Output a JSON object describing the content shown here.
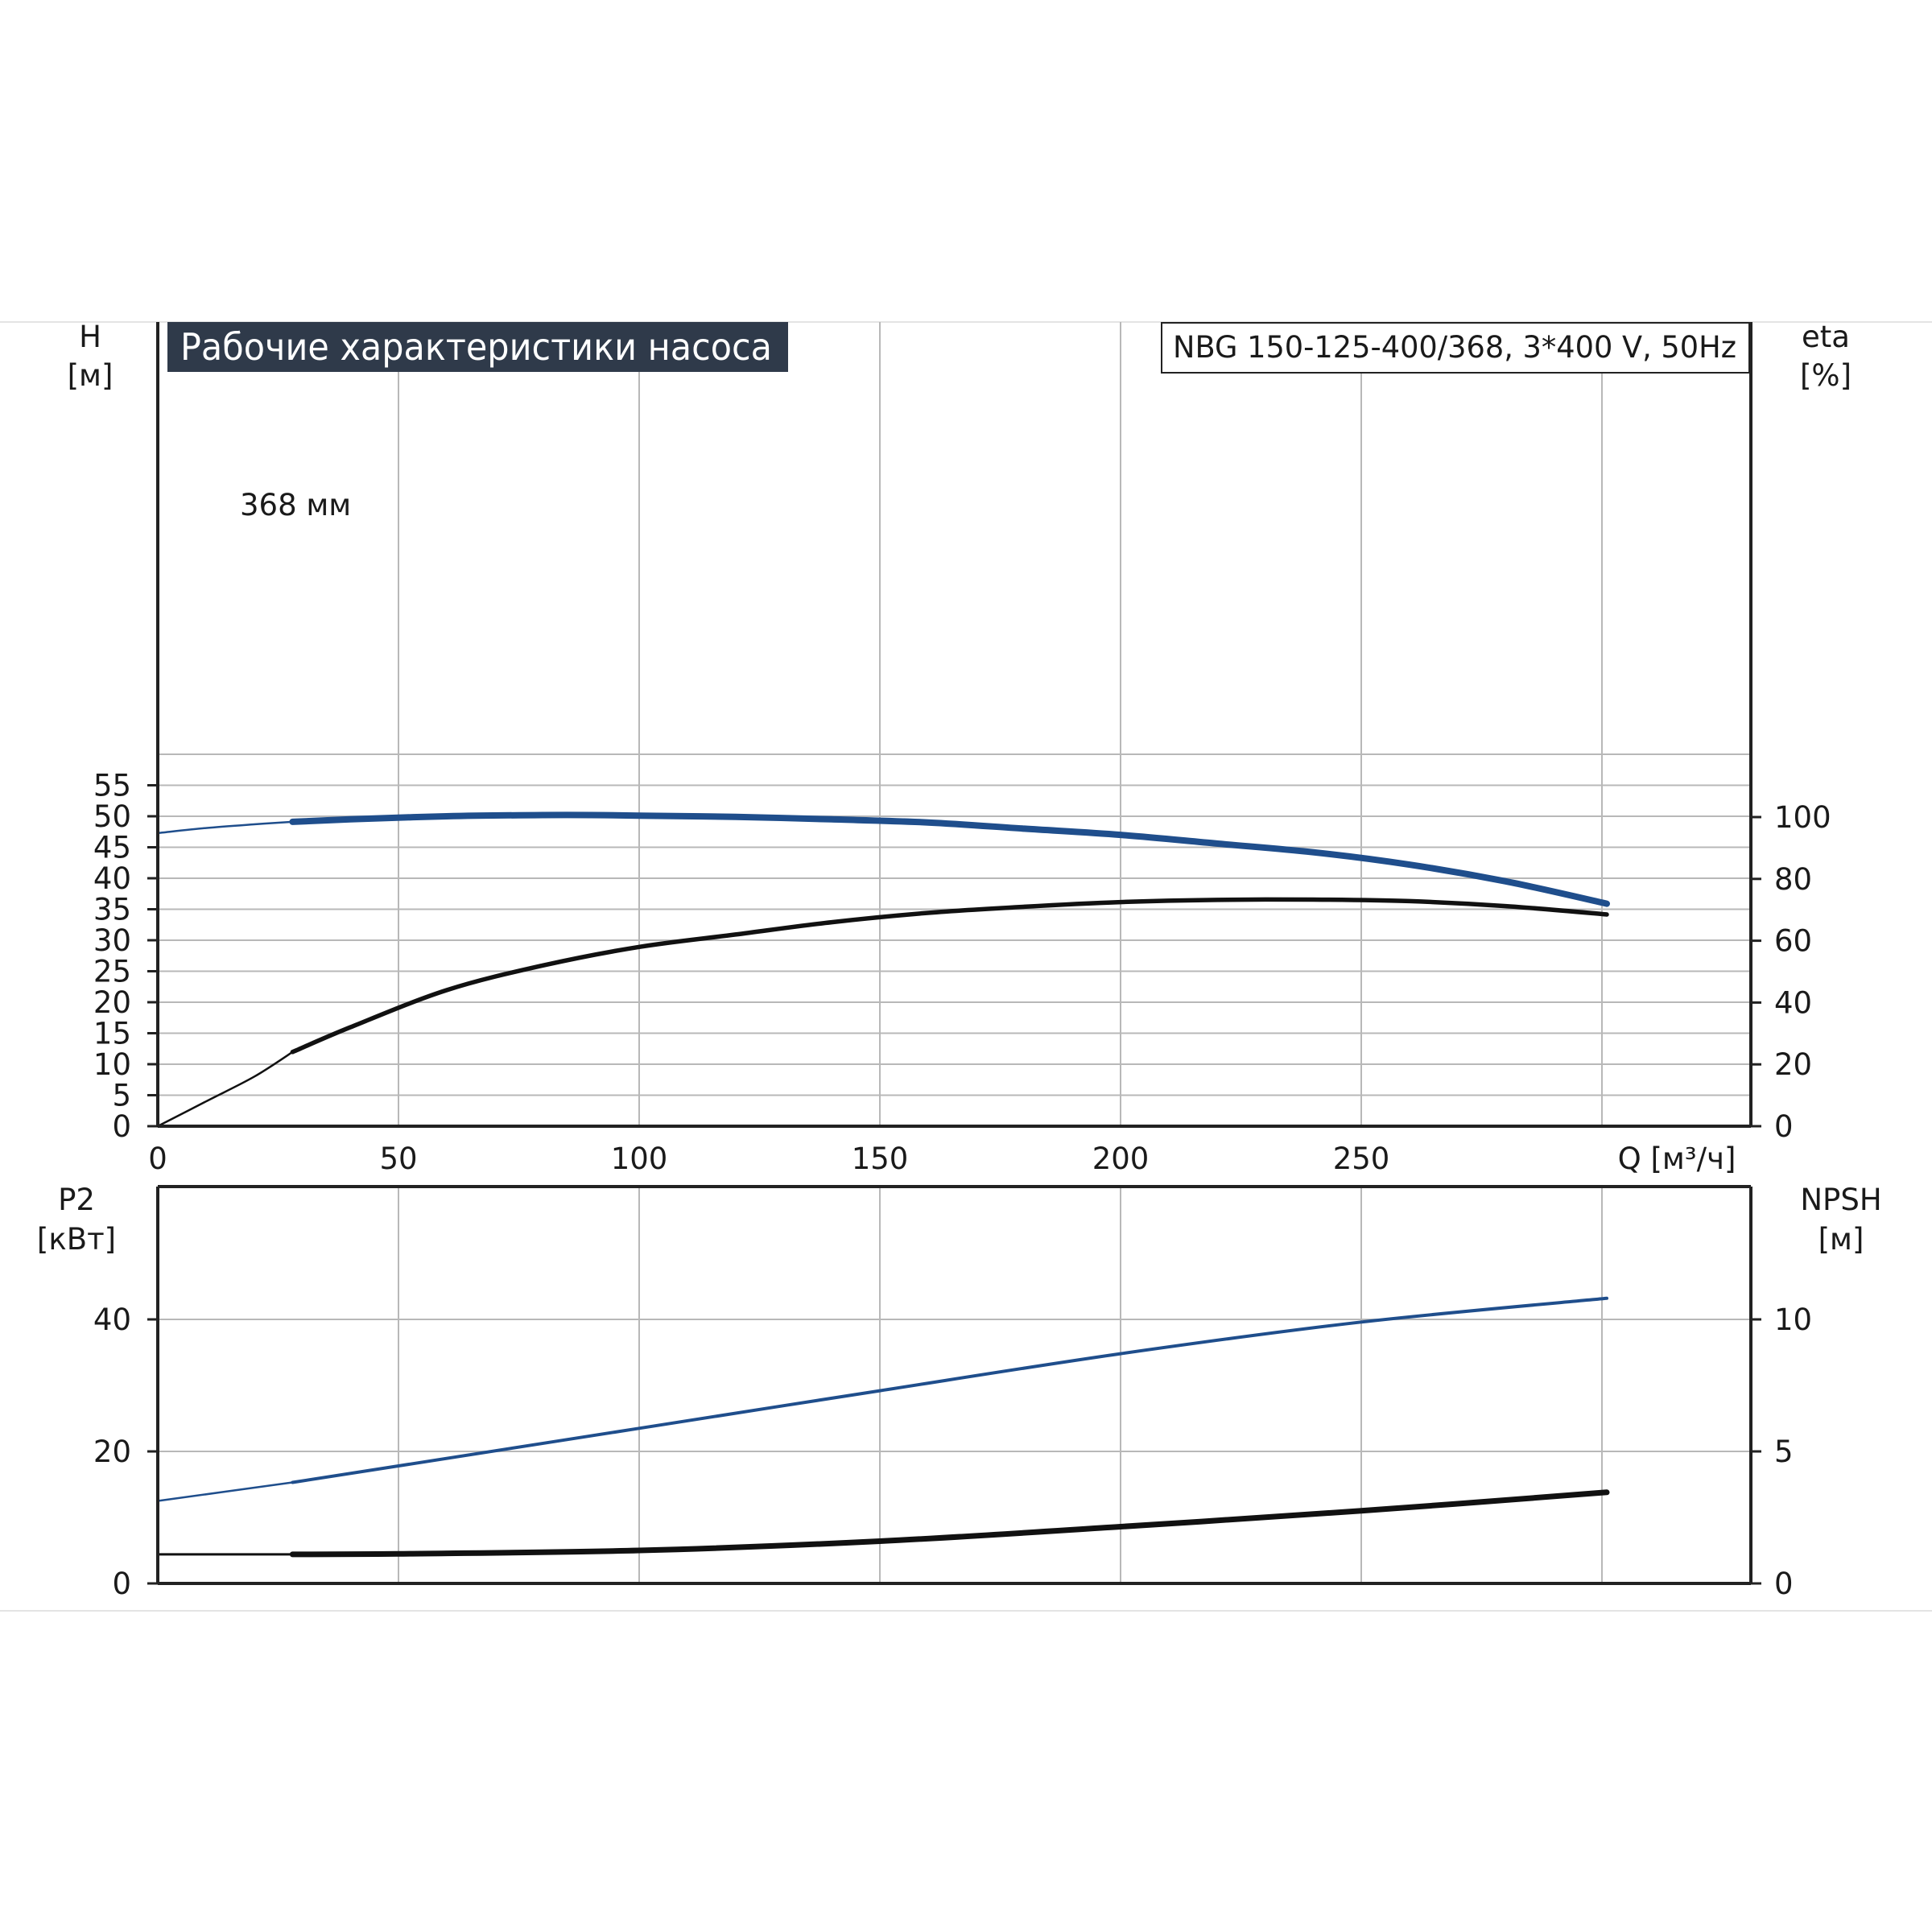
{
  "header": {
    "title": "Рабочие характеристики насоса",
    "model": "NBG 150-125-400/368, 3*400 V, 50Hz"
  },
  "colors": {
    "title_bg": "#2f3a4a",
    "head_curve": "#1f4e8c",
    "power_curve": "#1f4e8c",
    "efficiency_curve": "#111111",
    "npsh_curve": "#111111",
    "grid": "#b8b8b8",
    "axis": "#222222"
  },
  "chart_data": [
    {
      "type": "line",
      "panel": "top",
      "xlabel": "Q [м³/ч]",
      "xlim": [
        0,
        330
      ],
      "xticks": [
        "0",
        "50",
        "100",
        "150",
        "200",
        "250"
      ],
      "ylabel_left": [
        "H",
        "[м]"
      ],
      "ylim_left": [
        0,
        60
      ],
      "yticks_left": [
        "0",
        "5",
        "10",
        "15",
        "20",
        "25",
        "30",
        "35",
        "40",
        "45",
        "50",
        "55"
      ],
      "ylabel_right": [
        "eta",
        "[%]"
      ],
      "ylim_right": [
        0,
        240
      ],
      "yticks_right": [
        "0",
        "20",
        "40",
        "60",
        "80",
        "100"
      ],
      "grid": true,
      "annotation": "368 мм",
      "series": [
        {
          "axis": "left",
          "x": [
            0,
            10,
            20,
            28,
            40,
            60,
            80,
            90,
            100,
            120,
            140,
            160,
            180,
            200,
            220,
            240,
            260,
            280,
            301
          ],
          "y": [
            47.3,
            48.1,
            48.7,
            49.1,
            49.5,
            50.0,
            50.2,
            50.2,
            50.1,
            49.9,
            49.5,
            49.0,
            48.0,
            47.0,
            45.6,
            44.2,
            42.2,
            39.5,
            35.9
          ]
        },
        {
          "axis": "right",
          "x": [
            0,
            10,
            20,
            28,
            40,
            60,
            80,
            100,
            120,
            140,
            160,
            180,
            200,
            220,
            240,
            260,
            280,
            301
          ],
          "y": [
            0,
            8,
            16,
            24,
            32,
            44,
            52,
            58,
            62,
            66,
            69,
            71,
            72.5,
            73.2,
            73.3,
            72.8,
            71.2,
            68.5
          ]
        }
      ]
    },
    {
      "type": "line",
      "panel": "bottom",
      "xlim": [
        0,
        330
      ],
      "ylabel_left": [
        "P2",
        "[кВт]"
      ],
      "ylim_left": [
        0,
        60
      ],
      "yticks_left": [
        "0",
        "20",
        "40"
      ],
      "ylabel_right": [
        "NPSH",
        "[м]"
      ],
      "ylim_right": [
        0,
        15
      ],
      "yticks_right": [
        "0",
        "5",
        "10"
      ],
      "grid": true,
      "series": [
        {
          "axis": "left",
          "x": [
            0,
            28,
            50,
            100,
            150,
            200,
            250,
            301
          ],
          "y": [
            12.5,
            15.3,
            17.8,
            23.5,
            29.2,
            34.8,
            39.6,
            43.2
          ]
        },
        {
          "axis": "right",
          "x": [
            0,
            28,
            50,
            100,
            150,
            200,
            250,
            301
          ],
          "y": [
            1.1,
            1.1,
            1.12,
            1.25,
            1.6,
            2.15,
            2.75,
            3.45
          ]
        }
      ]
    }
  ]
}
